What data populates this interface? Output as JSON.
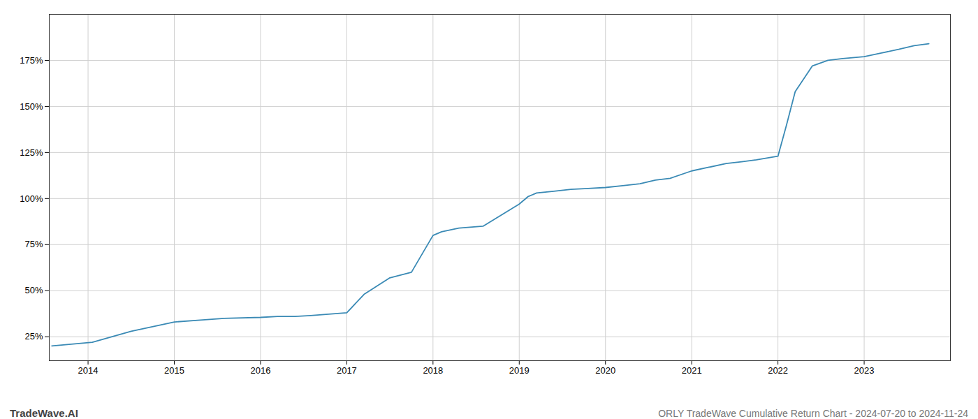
{
  "chart_data": {
    "type": "line",
    "title": "ORLY TradeWave Cumulative Return Chart - 2024-07-20 to 2024-11-24",
    "annotations": [
      "TradeWave.AI"
    ],
    "color": "#3a8ab5",
    "grid": true,
    "x": [
      2013.58,
      2014.05,
      2014.5,
      2015.0,
      2015.3,
      2015.58,
      2016.0,
      2016.2,
      2016.4,
      2016.58,
      2017.0,
      2017.2,
      2017.5,
      2017.75,
      2018.0,
      2018.1,
      2018.3,
      2018.58,
      2019.0,
      2019.1,
      2019.2,
      2019.4,
      2019.6,
      2019.8,
      2020.0,
      2020.2,
      2020.4,
      2020.58,
      2020.75,
      2021.0,
      2021.2,
      2021.4,
      2021.58,
      2021.75,
      2022.0,
      2022.1,
      2022.2,
      2022.4,
      2022.58,
      2022.75,
      2023.0,
      2023.2,
      2023.4,
      2023.58,
      2023.75
    ],
    "values": [
      20,
      22,
      28,
      33,
      34,
      35,
      35.5,
      36,
      36,
      36.5,
      38,
      48,
      57,
      60,
      80,
      82,
      84,
      85,
      97,
      101,
      103,
      104,
      105,
      105.5,
      106,
      107,
      108,
      110,
      111,
      115,
      117,
      119,
      120,
      121,
      123,
      140,
      158,
      172,
      175,
      176,
      177,
      179,
      181,
      183,
      184
    ],
    "xlim": [
      2013.55,
      2024.0
    ],
    "xticks": [
      2014,
      2015,
      2016,
      2017,
      2018,
      2019,
      2020,
      2021,
      2022,
      2023
    ],
    "ylim": [
      12,
      200
    ],
    "yticks": [
      {
        "value": 25,
        "label": "25%"
      },
      {
        "value": 50,
        "label": "50%"
      },
      {
        "value": 75,
        "label": "75%"
      },
      {
        "value": 100,
        "label": "100%"
      },
      {
        "value": 125,
        "label": "125%"
      },
      {
        "value": 150,
        "label": "150%"
      },
      {
        "value": 175,
        "label": "175%"
      }
    ]
  }
}
